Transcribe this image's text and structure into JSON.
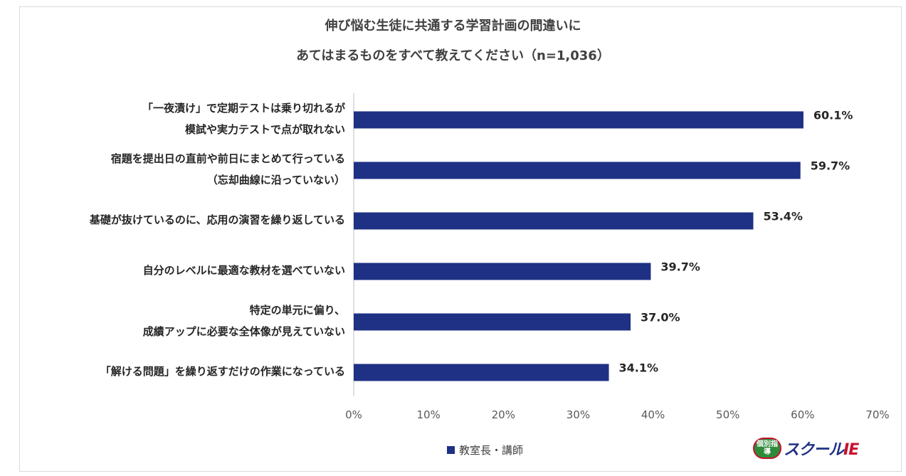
{
  "chart_data": {
    "type": "bar",
    "orientation": "horizontal",
    "title_lines": [
      "伸び悩む生徒に共通する学習計画の間違いに",
      "あてはまるものをすべて教えてください（n=1,036）"
    ],
    "categories": [
      [
        "「一夜漬け」で定期テストは乗り切れるが",
        "模試や実力テストで点が取れない"
      ],
      [
        "宿題を提出日の直前や前日にまとめて行っている",
        "（忘却曲線に沿っていない）"
      ],
      [
        "基礎が抜けているのに、応用の演習を繰り返している"
      ],
      [
        "自分のレベルに最適な教材を選べていない"
      ],
      [
        "特定の単元に偏り、",
        "成績アップに必要な全体像が見えていない"
      ],
      [
        "「解ける問題」を繰り返すだけの作業になっている"
      ]
    ],
    "series": [
      {
        "name": "教室長・講師",
        "values": [
          60.1,
          59.7,
          53.4,
          39.7,
          37.0,
          34.1
        ],
        "value_labels": [
          "60.1%",
          "59.7%",
          "53.4%",
          "39.7%",
          "37.0%",
          "34.1%"
        ],
        "color": "#1f3185"
      }
    ],
    "xlim": [
      0,
      70
    ],
    "x_ticks": [
      0,
      10,
      20,
      30,
      40,
      50,
      60,
      70
    ],
    "x_tick_labels": [
      "0%",
      "10%",
      "20%",
      "30%",
      "40%",
      "50%",
      "60%",
      "70%"
    ],
    "grid": false,
    "legend_position": "bottom-center"
  },
  "legend": {
    "label": "教室長・講師"
  },
  "logo": {
    "badge": "個別指導",
    "text": "スクール",
    "brand": "IE"
  }
}
